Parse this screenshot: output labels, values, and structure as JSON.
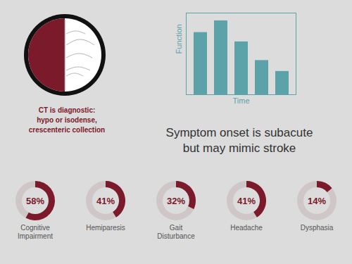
{
  "chart_data": [
    {
      "type": "donut",
      "title": "Symptom onset is subacute\nbut may mimic stroke",
      "categories": [
        "Cognitive\nImpairment",
        "Hemiparesis",
        "Gait\nDisturbance",
        "Headache",
        "Dysphasia"
      ],
      "values": [
        58,
        41,
        32,
        41,
        14
      ],
      "value_labels": [
        "58%",
        "41%",
        "32%",
        "41%",
        "14%"
      ],
      "data_labels": true,
      "color": "#7b1a2a",
      "annotations": [
        "CT is diagnostic:\nhypo or isodense,\ncrescenteric collection"
      ]
    },
    {
      "type": "bar",
      "x_label": "Time",
      "y_label": "Function",
      "categories": [
        null,
        null,
        null,
        null,
        null
      ],
      "values": [
        0.8,
        0.95,
        0.68,
        0.44,
        0.3
      ],
      "ylim": [
        0,
        1.05
      ],
      "tick_labels": false,
      "grid": false,
      "color": "#5ba3a8"
    }
  ]
}
